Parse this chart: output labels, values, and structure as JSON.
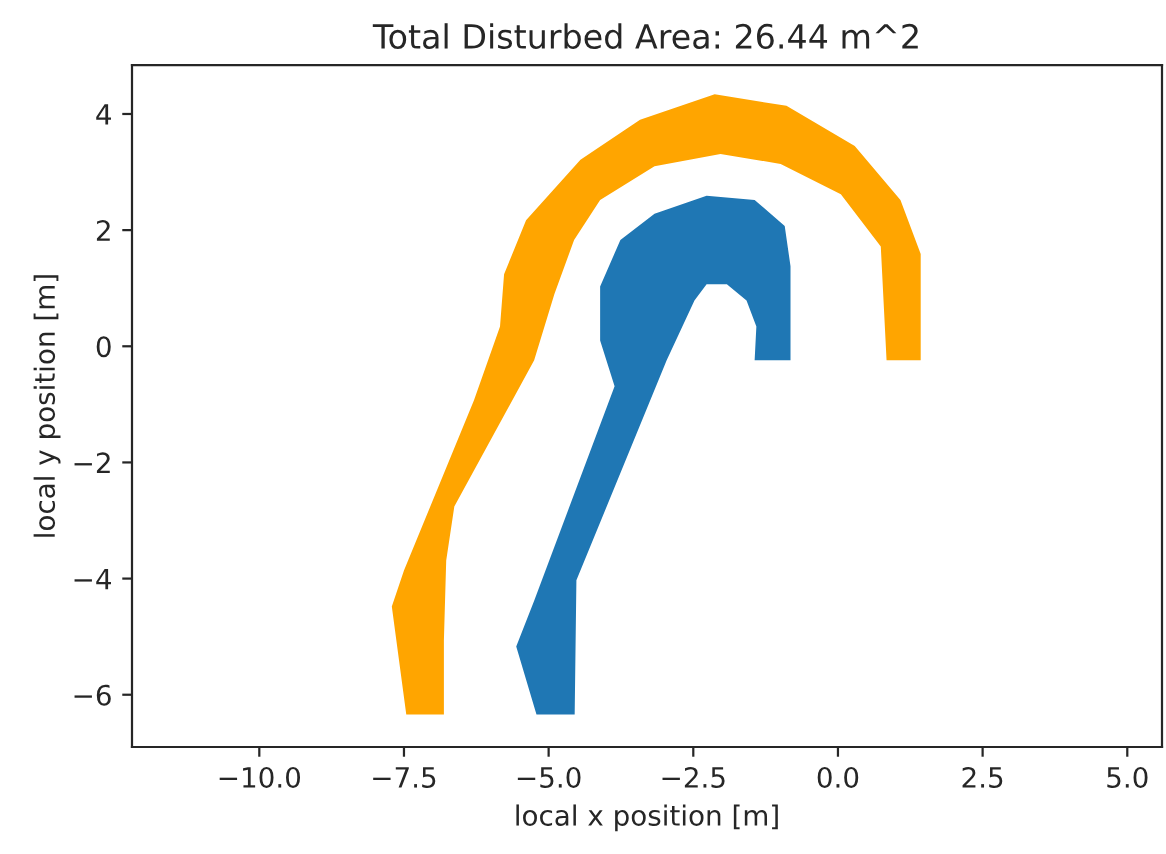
{
  "chart_data": {
    "type": "area",
    "title": "Total Disturbed Area: 26.44 m^2",
    "xlabel": "local x position [m]",
    "ylabel": "local y position [m]",
    "xlim": [
      -12.2,
      5.6
    ],
    "ylim": [
      -6.9,
      4.84
    ],
    "xticks": [
      {
        "value": -10,
        "label": "−10.0"
      },
      {
        "value": -7.5,
        "label": "−7.5"
      },
      {
        "value": -5,
        "label": "−5.0"
      },
      {
        "value": -2.5,
        "label": "−2.5"
      },
      {
        "value": 0,
        "label": "0.0"
      },
      {
        "value": 2.5,
        "label": "2.5"
      },
      {
        "value": 5,
        "label": "5.0"
      }
    ],
    "yticks": [
      {
        "value": -6,
        "label": "−6"
      },
      {
        "value": -4,
        "label": "−4"
      },
      {
        "value": -2,
        "label": "−2"
      },
      0,
      2,
      4
    ],
    "series": [
      {
        "color": "#ffa500",
        "x": [
          -7.46,
          -7.71,
          -7.5,
          -6.29,
          -5.84,
          -5.77,
          -5.39,
          -4.45,
          -3.42,
          -2.13,
          -0.89,
          0.29,
          1.08,
          1.43,
          1.43,
          0.84,
          0.74,
          0.05,
          -0.99,
          -2.03,
          -3.17,
          -4.11,
          -4.56,
          -4.9,
          -5.25,
          -6.63,
          -6.77,
          -6.81,
          -6.81
        ],
        "values": [
          -6.34,
          -4.48,
          -3.86,
          -0.93,
          0.34,
          1.24,
          2.17,
          3.21,
          3.9,
          4.34,
          4.14,
          3.45,
          2.52,
          1.59,
          -0.24,
          -0.24,
          1.72,
          2.62,
          3.14,
          3.31,
          3.1,
          2.52,
          1.83,
          0.9,
          -0.24,
          -2.76,
          -3.69,
          -5.07,
          -6.34
        ]
      },
      {
        "color": "#1f77b4",
        "x": [
          -5.21,
          -5.56,
          -5.25,
          -3.86,
          -4.11,
          -4.11,
          -3.76,
          -3.17,
          -2.27,
          -1.44,
          -0.92,
          -0.82,
          -0.82,
          -1.44,
          -1.41,
          -1.58,
          -1.92,
          -2.27,
          -2.48,
          -2.96,
          -4.52,
          -4.55
        ],
        "values": [
          -6.34,
          -5.17,
          -4.38,
          -0.69,
          0.1,
          1.03,
          1.83,
          2.28,
          2.59,
          2.52,
          2.07,
          1.38,
          -0.24,
          -0.24,
          0.34,
          0.79,
          1.07,
          1.07,
          0.79,
          -0.24,
          -4.03,
          -6.34
        ]
      }
    ]
  }
}
